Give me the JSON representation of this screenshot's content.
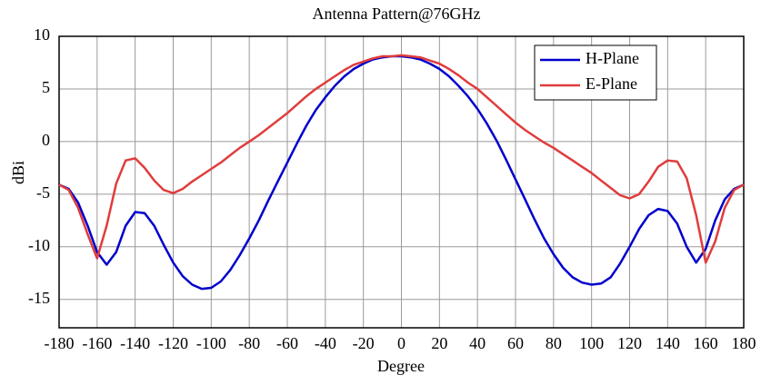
{
  "chart_data": {
    "type": "line",
    "title": "Antenna Pattern@76GHz",
    "x_label": "Degree",
    "y_label": "dBi",
    "x": [
      -180,
      -175,
      -170,
      -165,
      -160,
      -155,
      -150,
      -145,
      -140,
      -135,
      -130,
      -125,
      -120,
      -115,
      -110,
      -105,
      -100,
      -95,
      -90,
      -85,
      -80,
      -75,
      -70,
      -65,
      -60,
      -55,
      -50,
      -45,
      -40,
      -35,
      -30,
      -25,
      -20,
      -15,
      -10,
      -5,
      0,
      5,
      10,
      15,
      20,
      25,
      30,
      35,
      40,
      45,
      50,
      55,
      60,
      65,
      70,
      75,
      80,
      85,
      90,
      95,
      100,
      105,
      110,
      115,
      120,
      125,
      130,
      135,
      140,
      145,
      150,
      155,
      160,
      165,
      170,
      175,
      180
    ],
    "series": [
      {
        "name": "H-Plane",
        "color": "#0000cc",
        "values": [
          -4.1,
          -4.5,
          -5.8,
          -8,
          -10.5,
          -11.7,
          -10.5,
          -8,
          -6.7,
          -6.8,
          -8,
          -9.8,
          -11.5,
          -12.8,
          -13.6,
          -14,
          -13.9,
          -13.3,
          -12.2,
          -10.8,
          -9.2,
          -7.5,
          -5.6,
          -3.8,
          -2,
          -0.2,
          1.5,
          3,
          4.2,
          5.3,
          6.2,
          6.9,
          7.4,
          7.8,
          8.0,
          8.1,
          8.1,
          8.0,
          7.8,
          7.4,
          6.9,
          6.2,
          5.3,
          4.3,
          3.1,
          1.7,
          0.1,
          -1.7,
          -3.6,
          -5.5,
          -7.4,
          -9.2,
          -10.7,
          -12,
          -12.9,
          -13.4,
          -13.6,
          -13.5,
          -12.9,
          -11.6,
          -10,
          -8.3,
          -7,
          -6.4,
          -6.6,
          -7.8,
          -10,
          -11.5,
          -10.2,
          -7.5,
          -5.5,
          -4.5,
          -4.1
        ]
      },
      {
        "name": "E-Plane",
        "color": "#e03c3c",
        "values": [
          -4.1,
          -4.6,
          -6.3,
          -8.8,
          -11.1,
          -8,
          -4,
          -1.8,
          -1.6,
          -2.5,
          -3.7,
          -4.6,
          -4.9,
          -4.5,
          -3.8,
          -3.2,
          -2.6,
          -2,
          -1.3,
          -0.6,
          0,
          0.6,
          1.3,
          2,
          2.7,
          3.5,
          4.3,
          5,
          5.6,
          6.2,
          6.8,
          7.3,
          7.6,
          7.9,
          8.1,
          8.1,
          8.2,
          8.1,
          8.0,
          7.7,
          7.4,
          6.9,
          6.3,
          5.6,
          5.0,
          4.2,
          3.4,
          2.6,
          1.8,
          1.1,
          0.5,
          -0.1,
          -0.6,
          -1.2,
          -1.8,
          -2.4,
          -3,
          -3.7,
          -4.4,
          -5.1,
          -5.4,
          -5,
          -3.8,
          -2.4,
          -1.8,
          -1.9,
          -3.5,
          -7,
          -11.5,
          -9.5,
          -6.3,
          -4.6,
          -4.1
        ]
      }
    ],
    "xlim": [
      -180,
      180
    ],
    "xticks": [
      -180,
      -160,
      -140,
      -120,
      -100,
      -80,
      -60,
      -40,
      -20,
      0,
      20,
      40,
      60,
      80,
      100,
      120,
      140,
      160,
      180
    ],
    "ylim": [
      -17.7,
      10
    ],
    "yticks": [
      -15,
      -10,
      -5,
      0,
      5,
      10
    ],
    "grid": true,
    "legend": "upper right"
  }
}
